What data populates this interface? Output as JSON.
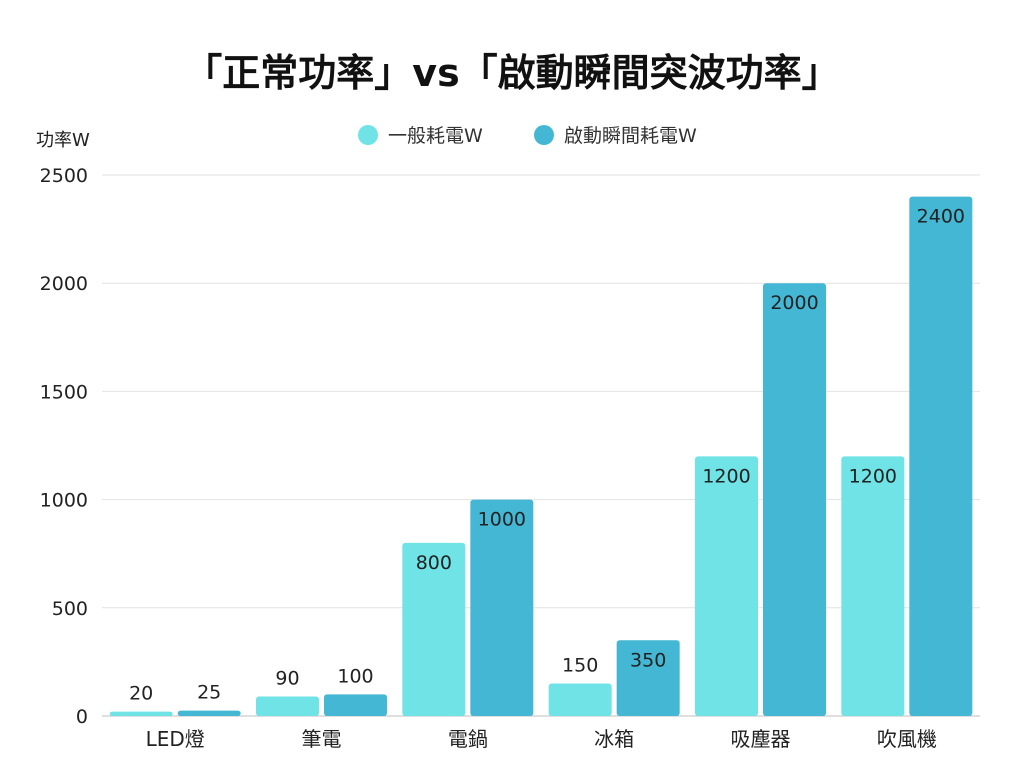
{
  "chart_data": {
    "type": "bar",
    "title": "「正常功率」vs「啟動瞬間突波功率」",
    "ylabel": "功率W",
    "xlabel": "",
    "ylim": [
      0,
      2500
    ],
    "yticks": [
      0,
      500,
      1000,
      1500,
      2000,
      2500
    ],
    "grid": true,
    "legend_position": "top-center",
    "categories": [
      "LED燈",
      "筆電",
      "電鍋",
      "冰箱",
      "吸塵器",
      "吹風機"
    ],
    "series": [
      {
        "name": "一般耗電W",
        "color": "#6fe3e6",
        "values": [
          20,
          90,
          800,
          150,
          1200,
          1200
        ]
      },
      {
        "name": "啟動瞬間耗電W",
        "color": "#44b7d4",
        "values": [
          25,
          100,
          1000,
          350,
          2000,
          2400
        ]
      }
    ]
  }
}
